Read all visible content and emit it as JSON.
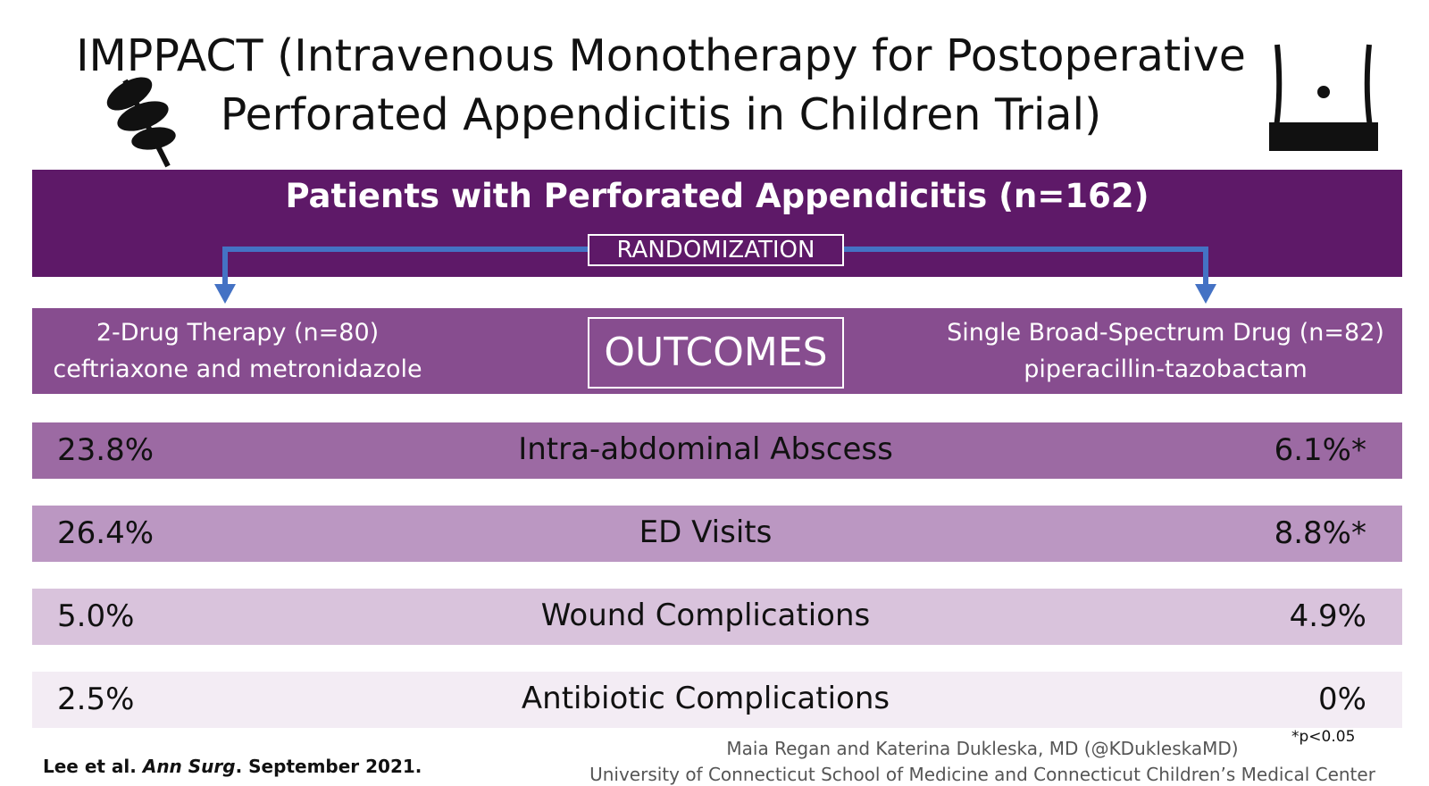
{
  "title": {
    "line1": "IMPPACT (Intravenous Monotherapy for Postoperative",
    "line2": "Perforated Appendicitis in Children Trial)"
  },
  "population": "Patients with Perforated Appendicitis (n=162)",
  "randomization": "RANDOMIZATION",
  "arms": [
    {
      "line1": "2-Drug Therapy (n=80)",
      "line2": "ceftriaxone and metronidazole"
    },
    {
      "line1": "Single Broad-Spectrum Drug (n=82)",
      "line2": "piperacillin-tazobactam"
    }
  ],
  "outcomes_label": "OUTCOMES",
  "outcomes": [
    {
      "left": "23.8%",
      "name": "Intra-abdominal Abscess",
      "right": "6.1%*"
    },
    {
      "left": "26.4%",
      "name": "ED Visits",
      "right": "8.8%*"
    },
    {
      "left": "5.0%",
      "name": "Wound Complications",
      "right": "4.9%"
    },
    {
      "left": "2.5%",
      "name": "Antibiotic Complications",
      "right": "0%"
    }
  ],
  "footnote": "*p<0.05",
  "citation": {
    "authors": "Lee et al.",
    "journal": "Ann Surg",
    "rest": ". September 2021."
  },
  "credits": {
    "line1": "Maia Regan and Katerina Dukleska, MD (@KDukleskaMD)",
    "line2": "University of Connecticut School of Medicine and Connecticut Children’s Medical Center"
  }
}
